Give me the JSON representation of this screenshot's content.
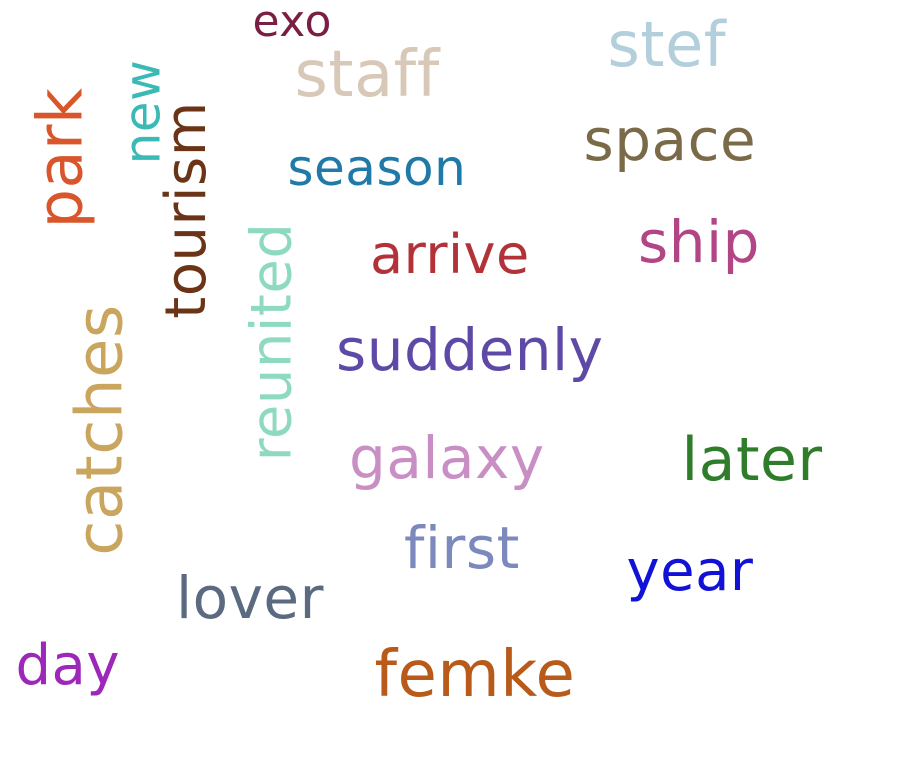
{
  "words": [
    {
      "id": "exo",
      "text": "exo",
      "color": "#7a1e43"
    },
    {
      "id": "staff",
      "text": "staff",
      "color": "#d8c8b8"
    },
    {
      "id": "stef",
      "text": "stef",
      "color": "#b3cfdc"
    },
    {
      "id": "space",
      "text": "space",
      "color": "#7a6a48"
    },
    {
      "id": "park",
      "text": "park",
      "color": "#d9552b"
    },
    {
      "id": "new",
      "text": "new",
      "color": "#3bbab5"
    },
    {
      "id": "tourism",
      "text": "tourism",
      "color": "#6b3417"
    },
    {
      "id": "season",
      "text": "season",
      "color": "#1f7aa8"
    },
    {
      "id": "ship",
      "text": "ship",
      "color": "#b24585"
    },
    {
      "id": "arrive",
      "text": "arrive",
      "color": "#b3323a"
    },
    {
      "id": "reunited",
      "text": "reunited",
      "color": "#8ed9c2"
    },
    {
      "id": "catches",
      "text": "catches",
      "color": "#c9a55e"
    },
    {
      "id": "suddenly",
      "text": "suddenly",
      "color": "#5e4aa6"
    },
    {
      "id": "galaxy",
      "text": "galaxy",
      "color": "#c98fc4"
    },
    {
      "id": "later",
      "text": "later",
      "color": "#2f7d2a"
    },
    {
      "id": "first",
      "text": "first",
      "color": "#7c89bd"
    },
    {
      "id": "year",
      "text": "year",
      "color": "#1212d6"
    },
    {
      "id": "lover",
      "text": "lover",
      "color": "#5b6a80"
    },
    {
      "id": "day",
      "text": "day",
      "color": "#9c27b8"
    },
    {
      "id": "femke",
      "text": "femke",
      "color": "#b85a1a"
    }
  ]
}
